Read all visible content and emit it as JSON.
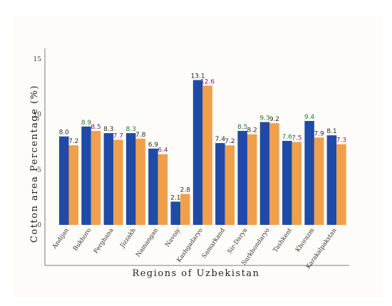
{
  "chart_data": {
    "type": "bar",
    "xlabel": "Regions of Uzbekistan",
    "ylabel": "Cotton area Percentage (%)",
    "ylim": [
      0,
      15
    ],
    "yticks": [
      0,
      5,
      10,
      15
    ],
    "grid": false,
    "legend": "none",
    "categories": [
      "Andijan",
      "Bukhoro",
      "Ferghana",
      "Jizzakh",
      "Namangan",
      "Navoiy",
      "Kashgadaryo",
      "Samarkand",
      "Sir-Darya",
      "Surkhondaryo",
      "Tashkent",
      "Khorazm",
      "Karakalpakstan"
    ],
    "series": [
      {
        "color": "#1f4aa8",
        "values": [
          8.0,
          8.9,
          8.3,
          8.3,
          6.9,
          2.1,
          13.1,
          7.4,
          8.5,
          9.3,
          7.6,
          9.4,
          8.1
        ],
        "label_colors": [
          "#2b2b2b",
          "#1e7a40",
          "#2b2b2b",
          "#1e7a40",
          "#2b2b2b",
          "#2b2b2b",
          "#2b2b2b",
          "#2b2b2b",
          "#1e7a40",
          "#1e7a40",
          "#1e7a40",
          "#1e7a40",
          "#2b2b2b"
        ]
      },
      {
        "color": "#f0a04b",
        "values": [
          7.2,
          8.5,
          7.7,
          7.8,
          6.4,
          2.8,
          12.6,
          7.2,
          8.2,
          9.2,
          7.5,
          7.9,
          7.3
        ],
        "label_colors": [
          "#2b2b2b",
          "#7a1f6e",
          "#7a1f6e",
          "#2b2b2b",
          "#7a1f6e",
          "#2b2b2b",
          "#7a1f6e",
          "#2b2b2b",
          "#2b2b2b",
          "#2b2b2b",
          "#7a1f6e",
          "#2b2b2b",
          "#7a1f6e"
        ]
      }
    ]
  }
}
